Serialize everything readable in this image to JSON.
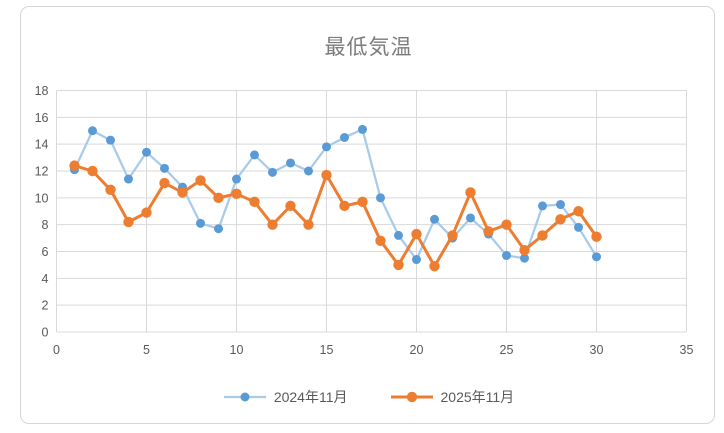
{
  "card": {
    "title": "最低気温"
  },
  "chart_data": {
    "type": "line",
    "title": "最低気温",
    "xlabel": "",
    "ylabel": "",
    "xlim": [
      0,
      35
    ],
    "ylim": [
      0,
      18
    ],
    "x_ticks": [
      0,
      5,
      10,
      15,
      20,
      25,
      30,
      35
    ],
    "y_ticks": [
      0,
      2,
      4,
      6,
      8,
      10,
      12,
      14,
      16,
      18
    ],
    "grid": true,
    "legend_position": "bottom",
    "x": [
      1,
      2,
      3,
      4,
      5,
      6,
      7,
      8,
      9,
      10,
      11,
      12,
      13,
      14,
      15,
      16,
      17,
      18,
      19,
      20,
      21,
      22,
      23,
      24,
      25,
      26,
      27,
      28,
      29,
      30
    ],
    "series": [
      {
        "name": "2024年11月",
        "marker_color": "#5b9bd5",
        "line_color": "#a8cbe9",
        "marker_radius": 4.5,
        "line_width": 2.25,
        "values": [
          12.1,
          15.0,
          14.3,
          11.4,
          13.4,
          12.2,
          10.8,
          8.1,
          7.7,
          11.4,
          13.2,
          11.9,
          12.6,
          12.0,
          13.8,
          14.5,
          15.1,
          10.0,
          7.2,
          5.4,
          8.4,
          7.0,
          8.5,
          7.3,
          5.7,
          5.5,
          9.4,
          9.5,
          7.8,
          5.6
        ]
      },
      {
        "name": "2025年11月",
        "marker_color": "#ed7d31",
        "line_color": "#ed7d31",
        "marker_radius": 5.2,
        "line_width": 3,
        "values": [
          12.4,
          12.0,
          10.6,
          8.2,
          8.9,
          11.1,
          10.4,
          11.3,
          10.0,
          10.3,
          9.7,
          8.0,
          9.4,
          8.0,
          11.7,
          9.4,
          9.7,
          6.8,
          5.0,
          7.3,
          4.9,
          7.2,
          10.4,
          7.5,
          8.0,
          6.1,
          7.2,
          8.4,
          9.0,
          7.1
        ]
      }
    ],
    "colors": {
      "gridline": "#d9d9d9",
      "tick_label": "#595959",
      "title": "#7b7b7b",
      "card_border": "#d6d6d6"
    }
  }
}
